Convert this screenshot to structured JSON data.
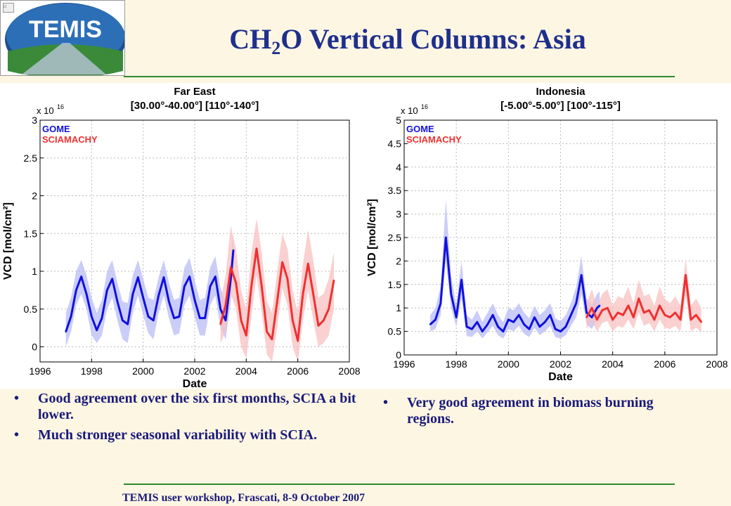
{
  "slide": {
    "title_pre": "CH",
    "title_sub": "2",
    "title_post": "O Vertical Columns: Asia",
    "footer": "TEMIS user workshop, Frascati, 8-9 October 2007",
    "logo_text": "TEMIS",
    "bullets_left": [
      "Good agreement over the six first months, SCIA a bit lower.",
      "Much stronger seasonal variability with SCIA."
    ],
    "bullets_right": [
      "Very good agreement in biomass burning regions."
    ]
  },
  "colors": {
    "gome": "#1010e0",
    "sciamachy": "#f03030",
    "gome_band": "#b8bcf4",
    "scia_band": "#f8c0c0",
    "title": "#1f2f8c"
  },
  "chart_data": [
    {
      "type": "line",
      "title": "Far East",
      "subtitle": "[30.00°-40.00°] [110°-140°]",
      "xlabel": "Date",
      "ylabel": "VCD [mol/cm²]",
      "yscale_label": "x 10",
      "yscale_exp": "16",
      "xlim": [
        1996,
        2008
      ],
      "ylim": [
        -0.2,
        3
      ],
      "xticks": [
        1996,
        1998,
        2000,
        2002,
        2004,
        2006,
        2008
      ],
      "yticks": [
        0,
        0.5,
        1,
        1.5,
        2,
        2.5,
        3
      ],
      "ytick_labels": [
        "0",
        "0.5",
        "1",
        "1.5",
        "2",
        "2.5",
        "3"
      ],
      "grid": true,
      "legend": "top-left",
      "series": [
        {
          "name": "GOME",
          "x": [
            1997.0,
            1997.2,
            1997.4,
            1997.6,
            1997.8,
            1998.0,
            1998.2,
            1998.4,
            1998.6,
            1998.8,
            1999.0,
            1999.2,
            1999.4,
            1999.6,
            1999.8,
            2000.0,
            2000.2,
            2000.4,
            2000.6,
            2000.8,
            2001.0,
            2001.2,
            2001.4,
            2001.6,
            2001.8,
            2002.0,
            2002.2,
            2002.4,
            2002.6,
            2002.8,
            2003.0,
            2003.2,
            2003.4,
            2003.5
          ],
          "y": [
            0.2,
            0.4,
            0.75,
            0.93,
            0.7,
            0.4,
            0.22,
            0.38,
            0.75,
            0.9,
            0.6,
            0.35,
            0.3,
            0.7,
            0.92,
            0.65,
            0.4,
            0.35,
            0.68,
            0.92,
            0.6,
            0.38,
            0.4,
            0.8,
            0.93,
            0.62,
            0.38,
            0.38,
            0.8,
            0.93,
            0.5,
            0.35,
            0.9,
            1.28
          ],
          "lower": [
            0.0,
            0.2,
            0.55,
            0.7,
            0.5,
            0.15,
            0.05,
            0.15,
            0.5,
            0.65,
            0.35,
            0.1,
            0.05,
            0.45,
            0.68,
            0.42,
            0.18,
            0.1,
            0.45,
            0.68,
            0.38,
            0.15,
            0.18,
            0.55,
            0.68,
            0.4,
            0.15,
            0.15,
            0.55,
            0.68,
            0.25,
            0.1,
            0.6,
            1.0
          ],
          "upper": [
            0.45,
            0.65,
            1.0,
            1.15,
            0.95,
            0.65,
            0.45,
            0.62,
            1.0,
            1.15,
            0.85,
            0.6,
            0.58,
            0.95,
            1.15,
            0.9,
            0.65,
            0.62,
            0.92,
            1.15,
            0.85,
            0.62,
            0.65,
            1.05,
            1.18,
            0.88,
            0.62,
            0.65,
            1.05,
            1.2,
            0.78,
            0.6,
            1.15,
            1.5
          ]
        },
        {
          "name": "SCIAMACHY",
          "x": [
            2003.0,
            2003.2,
            2003.4,
            2003.6,
            2003.8,
            2004.0,
            2004.2,
            2004.4,
            2004.6,
            2004.8,
            2005.0,
            2005.2,
            2005.4,
            2005.6,
            2005.8,
            2006.0,
            2006.2,
            2006.4,
            2006.6,
            2006.8,
            2007.0,
            2007.2,
            2007.4
          ],
          "y": [
            0.3,
            0.55,
            1.05,
            0.85,
            0.35,
            0.15,
            0.8,
            1.3,
            0.8,
            0.2,
            0.1,
            0.6,
            1.12,
            0.9,
            0.35,
            0.08,
            0.7,
            1.1,
            0.7,
            0.28,
            0.35,
            0.5,
            0.88
          ],
          "lower": [
            0.05,
            0.2,
            0.7,
            0.5,
            0.0,
            -0.15,
            0.4,
            0.95,
            0.45,
            -0.1,
            -0.2,
            0.25,
            0.78,
            0.55,
            0.0,
            -0.2,
            0.35,
            0.75,
            0.35,
            0.0,
            0.05,
            0.15,
            0.5
          ],
          "upper": [
            0.6,
            0.95,
            1.6,
            1.3,
            0.75,
            0.5,
            1.25,
            1.7,
            1.25,
            0.6,
            0.45,
            1.0,
            1.5,
            1.3,
            0.75,
            0.45,
            1.1,
            1.55,
            1.15,
            0.65,
            0.7,
            0.9,
            1.25
          ]
        }
      ]
    },
    {
      "type": "line",
      "title": "Indonesia",
      "subtitle": "[-5.00°-5.00°] [100°-115°]",
      "xlabel": "Date",
      "ylabel": "VCD [mol/cm²]",
      "yscale_label": "x 10",
      "yscale_exp": "16",
      "xlim": [
        1996,
        2008
      ],
      "ylim": [
        0,
        5
      ],
      "xticks": [
        1996,
        1998,
        2000,
        2002,
        2004,
        2006,
        2008
      ],
      "yticks": [
        0,
        0.5,
        1,
        1.5,
        2,
        2.5,
        3,
        3.5,
        4,
        4.5,
        5
      ],
      "ytick_labels": [
        "0",
        "0.5",
        "1",
        "1.5",
        "2",
        "2.5",
        "3",
        "3.5",
        "4",
        "4.5",
        "5"
      ],
      "grid": true,
      "legend": "top-left",
      "series": [
        {
          "name": "GOME",
          "x": [
            1997.0,
            1997.2,
            1997.4,
            1997.6,
            1997.8,
            1998.0,
            1998.2,
            1998.4,
            1998.6,
            1998.8,
            1999.0,
            1999.2,
            1999.4,
            1999.6,
            1999.8,
            2000.0,
            2000.2,
            2000.4,
            2000.6,
            2000.8,
            2001.0,
            2001.2,
            2001.4,
            2001.6,
            2001.8,
            2002.0,
            2002.2,
            2002.4,
            2002.6,
            2002.8,
            2003.0,
            2003.2,
            2003.4,
            2003.5
          ],
          "y": [
            0.65,
            0.75,
            1.1,
            2.5,
            1.3,
            0.8,
            1.6,
            0.6,
            0.55,
            0.7,
            0.5,
            0.65,
            0.85,
            0.6,
            0.5,
            0.75,
            0.7,
            0.85,
            0.65,
            0.55,
            0.8,
            0.6,
            0.7,
            0.85,
            0.55,
            0.5,
            0.6,
            0.85,
            1.1,
            1.7,
            0.9,
            0.8,
            1.0,
            1.05
          ],
          "lower": [
            0.5,
            0.55,
            0.85,
            2.0,
            1.0,
            0.6,
            1.2,
            0.4,
            0.38,
            0.5,
            0.35,
            0.48,
            0.62,
            0.42,
            0.35,
            0.55,
            0.5,
            0.62,
            0.45,
            0.38,
            0.58,
            0.42,
            0.5,
            0.62,
            0.38,
            0.35,
            0.42,
            0.62,
            0.8,
            1.3,
            0.65,
            0.55,
            0.75,
            0.8
          ],
          "upper": [
            0.85,
            1.0,
            1.45,
            3.3,
            1.7,
            1.05,
            2.0,
            0.85,
            0.75,
            0.95,
            0.7,
            0.9,
            1.1,
            0.85,
            0.7,
            1.0,
            0.95,
            1.1,
            0.9,
            0.78,
            1.05,
            0.85,
            0.95,
            1.1,
            0.78,
            0.72,
            0.85,
            1.1,
            1.45,
            2.1,
            1.2,
            1.05,
            1.3,
            1.35
          ]
        },
        {
          "name": "SCIAMACHY",
          "x": [
            2003.0,
            2003.2,
            2003.4,
            2003.6,
            2003.8,
            2004.0,
            2004.2,
            2004.4,
            2004.6,
            2004.8,
            2005.0,
            2005.2,
            2005.4,
            2005.6,
            2005.8,
            2006.0,
            2006.2,
            2006.4,
            2006.6,
            2006.8,
            2007.0,
            2007.2,
            2007.4
          ],
          "y": [
            0.8,
            1.0,
            0.75,
            0.95,
            1.0,
            0.75,
            0.9,
            0.85,
            1.05,
            0.8,
            1.2,
            0.9,
            0.95,
            0.75,
            1.05,
            0.85,
            0.8,
            0.9,
            0.75,
            1.7,
            0.75,
            0.85,
            0.7
          ],
          "lower": [
            0.55,
            0.72,
            0.5,
            0.68,
            0.72,
            0.5,
            0.62,
            0.58,
            0.75,
            0.55,
            0.9,
            0.62,
            0.68,
            0.5,
            0.75,
            0.58,
            0.55,
            0.62,
            0.5,
            1.25,
            0.5,
            0.58,
            0.48
          ],
          "upper": [
            1.1,
            1.4,
            1.05,
            1.3,
            1.4,
            1.05,
            1.25,
            1.2,
            1.45,
            1.1,
            1.6,
            1.25,
            1.3,
            1.05,
            1.45,
            1.2,
            1.1,
            1.25,
            1.05,
            2.05,
            1.05,
            1.2,
            1.0
          ]
        }
      ]
    }
  ]
}
